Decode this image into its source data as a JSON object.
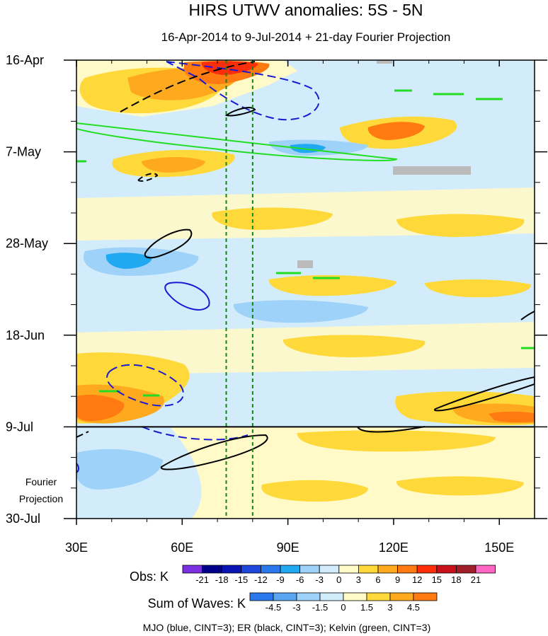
{
  "chart_data": {
    "type": "heatmap",
    "title": "HIRS UTWV anomalies: 5S - 5N",
    "subtitle": "16-Apr-2014 to 9-Jul-2014 + 21-day Fourier Projection",
    "x_ticks": [
      "30E",
      "60E",
      "90E",
      "120E",
      "150E"
    ],
    "x_tick_values": [
      30,
      60,
      90,
      120,
      150
    ],
    "xlim": [
      30,
      160
    ],
    "y_ticks": [
      "16-Apr",
      "7-May",
      "28-May",
      "18-Jun",
      "9-Jul",
      "30-Jul"
    ],
    "y_tick_days": [
      0,
      21,
      42,
      63,
      84,
      105
    ],
    "ylim_days": [
      0,
      105
    ],
    "projection_start_day": 84,
    "projection_label": [
      "Fourier",
      "Projection"
    ],
    "vertical_lines_lon": [
      72.5,
      80
    ],
    "obs_legend": {
      "title": "Obs: K",
      "labels": [
        "-21",
        "-18",
        "-15",
        "-12",
        "-9",
        "-6",
        "-3",
        "0",
        "3",
        "6",
        "9",
        "12",
        "15",
        "18",
        "21"
      ],
      "colors": [
        "#7b2fe0",
        "#00008b",
        "#0a14b4",
        "#1e46dc",
        "#2a78ec",
        "#20a8f0",
        "#9ed2f8",
        "#d2ecfc",
        "#fffac8",
        "#ffd93a",
        "#ffaa1e",
        "#ff7a10",
        "#ff2e0a",
        "#c8101a",
        "#a01e28",
        "#ff66c4"
      ]
    },
    "waves_legend": {
      "title": "Sum of Waves: K",
      "labels": [
        "-4.5",
        "-3",
        "-1.5",
        "0",
        "1.5",
        "3",
        "4.5"
      ],
      "colors": [
        "#2a78ec",
        "#5aa6f2",
        "#9ed2f8",
        "#d2ecfc",
        "#fffac8",
        "#ffd93a",
        "#ffaa1e",
        "#ff7a10"
      ]
    },
    "footnote": "MJO (blue, CINT=3); ER (black, CINT=3); Kelvin (green, CINT=3)",
    "contour_colors": {
      "mjo": "#1a1ad0",
      "er": "#000000",
      "kelvin": "#22dd22",
      "grid": "#118811"
    }
  }
}
